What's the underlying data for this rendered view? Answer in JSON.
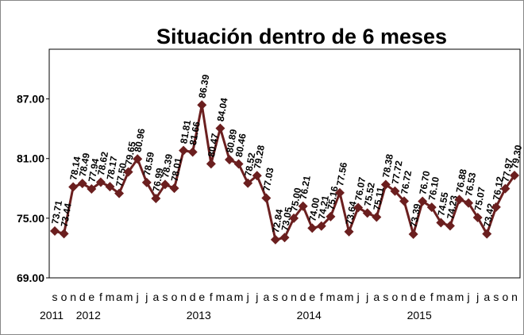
{
  "chart_data": {
    "type": "line",
    "title": "Situación dentro de 6 meses",
    "categories": [
      "s",
      "o",
      "n",
      "d",
      "e",
      "f",
      "m",
      "a",
      "m",
      "j",
      "j",
      "a",
      "s",
      "o",
      "n",
      "d",
      "e",
      "f",
      "m",
      "a",
      "m",
      "j",
      "j",
      "a",
      "s",
      "o",
      "n",
      "d",
      "e",
      "f",
      "m",
      "a",
      "m",
      "j",
      "j",
      "a",
      "s",
      "o",
      "n",
      "d",
      "e",
      "f",
      "m",
      "a",
      "m",
      "j",
      "j",
      "a",
      "s",
      "o",
      "n"
    ],
    "category_groups": [
      "2011",
      null,
      null,
      null,
      "2012",
      null,
      null,
      null,
      null,
      null,
      null,
      null,
      null,
      null,
      null,
      null,
      "2013",
      null,
      null,
      null,
      null,
      null,
      null,
      null,
      null,
      null,
      null,
      null,
      "2014",
      null,
      null,
      null,
      null,
      null,
      null,
      null,
      null,
      null,
      null,
      null,
      "2015",
      null,
      null,
      null,
      null,
      null,
      null,
      null,
      null,
      null,
      null
    ],
    "series": [
      {
        "name": "Situación dentro de 6 meses",
        "color": "#6b1f1f",
        "values": [
          73.71,
          73.44,
          78.14,
          78.49,
          77.94,
          78.62,
          78.17,
          77.5,
          79.65,
          80.96,
          78.59,
          76.99,
          78.39,
          78.01,
          81.81,
          81.66,
          86.39,
          80.47,
          84.04,
          80.89,
          80.46,
          78.52,
          79.28,
          77.03,
          72.84,
          73.05,
          75.0,
          76.21,
          74.0,
          74.21,
          75.16,
          77.56,
          73.64,
          76.07,
          75.52,
          75.11,
          78.38,
          77.72,
          76.72,
          73.39,
          76.7,
          76.1,
          74.55,
          74.23,
          76.88,
          76.53,
          75.07,
          73.42,
          76.12,
          77.97,
          79.3
        ],
        "value_labels": [
          "73.71",
          "73.44",
          "78.14",
          "78.49",
          "77.94",
          "78.62",
          "78.17",
          "77.50",
          "79.65",
          "80.96",
          "78.59",
          "76.99",
          "78.39",
          "78.01",
          "81.81",
          "81.66",
          "86.39",
          "80.47",
          "84.04",
          "80.89",
          "80.46",
          "78.52",
          "79.28",
          "77.03",
          "72.84",
          "73.05",
          "75.00",
          "76.21",
          "74.00",
          "74.21",
          "75.16",
          "77.56",
          "73.64",
          "76.07",
          "75.52",
          "75.11",
          "78.38",
          "77.72",
          "76.72",
          "73.39",
          "76.70",
          "76.10",
          "74.55",
          "74.23",
          "76.88",
          "76.53",
          "75.07",
          "73.42",
          "76.12",
          "77.97",
          "79.30"
        ]
      }
    ],
    "ylim": [
      69,
      92
    ],
    "yticks": [
      {
        "value": 69,
        "label": "69.00"
      },
      {
        "value": 75,
        "label": "75.00"
      },
      {
        "value": 81,
        "label": "81.00"
      },
      {
        "value": 87,
        "label": "87.00"
      }
    ],
    "grid": false
  }
}
